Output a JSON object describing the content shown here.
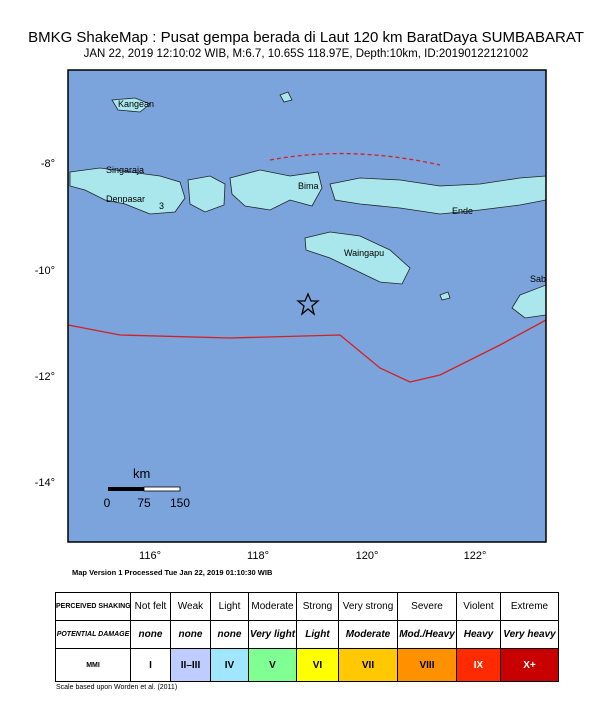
{
  "header": {
    "title": "BMKG ShakeMap : Pusat gempa berada di Laut 120 km BaratDaya SUMBABARAT",
    "subtitle": "JAN 22, 2019 12:10:02 WIB, M:6.7, 10.65S 118.97E, Depth:10km, ID:20190122121002"
  },
  "map": {
    "lat_labels": [
      "-8°",
      "-10°",
      "-12°",
      "-14°"
    ],
    "lon_labels": [
      "116°",
      "118°",
      "120°",
      "122°"
    ],
    "places": [
      "Kangean",
      "Singaraja",
      "Denpasar",
      "Bima",
      "Ende",
      "Waingapu",
      "Sab",
      "3"
    ],
    "scale": {
      "unit": "km",
      "labels": [
        "0",
        "75",
        "150"
      ]
    }
  },
  "footer": {
    "version": "Map Version 1 Processed Tue Jan 22, 2019 01:10:30 WIB",
    "note": "Scale based upon Worden et al. (2011)"
  },
  "legend": {
    "rows": [
      {
        "header": "PERCEIVED SHAKING",
        "cells": [
          "Not felt",
          "Weak",
          "Light",
          "Moderate",
          "Strong",
          "Very strong",
          "Severe",
          "Violent",
          "Extreme"
        ]
      },
      {
        "header": "POTENTIAL DAMAGE",
        "cells": [
          "none",
          "none",
          "none",
          "Very light",
          "Light",
          "Moderate",
          "Mod./Heavy",
          "Heavy",
          "Very heavy"
        ]
      },
      {
        "header": "MMI",
        "cells": [
          "I",
          "II–III",
          "IV",
          "V",
          "VI",
          "VII",
          "VIII",
          "IX",
          "X+"
        ]
      }
    ],
    "colors": [
      "#ffffff",
      "#bfccff",
      "#a0e6ff",
      "#80ff93",
      "#ffff00",
      "#ffc800",
      "#ff9100",
      "#ff2a00",
      "#c80000"
    ]
  }
}
